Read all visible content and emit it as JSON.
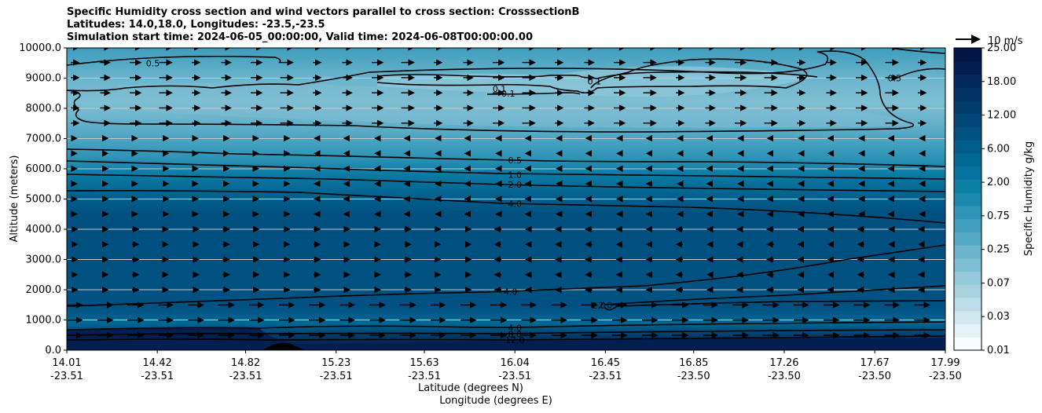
{
  "chart_data": {
    "type": "contourf",
    "title_lines": [
      "Specific Humidity cross section and wind vectors parallel to cross section: CrosssectionB",
      "Latitudes: 14.0,18.0, Longitudes: -23.5,-23.5",
      "Simulation start time: 2024-06-05_00:00:00, Valid time: 2024-06-08T00:00:00.00"
    ],
    "ylabel": "Altitude (meters)",
    "xlabel_lat": "Latitude (degrees N)",
    "xlabel_lon": "Longitude (degrees E)",
    "ylim": [
      0,
      10000
    ],
    "yticks": [
      "0.0",
      "1000.0",
      "2000.0",
      "3000.0",
      "4000.0",
      "5000.0",
      "6000.0",
      "7000.0",
      "8000.0",
      "9000.0",
      "10000.0"
    ],
    "xtick_lat": [
      "14.01",
      "14.42",
      "14.82",
      "15.23",
      "15.63",
      "16.04",
      "16.45",
      "16.85",
      "17.26",
      "17.67",
      "17.99"
    ],
    "xtick_lon": [
      "-23.51",
      "-23.51",
      "-23.51",
      "-23.51",
      "-23.51",
      "-23.51",
      "-23.51",
      "-23.50",
      "-23.50",
      "-23.50",
      "-23.50"
    ],
    "colorbar": {
      "label": "Specific Humidity g/kg",
      "ticks": [
        "0.01",
        "0.03",
        "0.07",
        "0.25",
        "0.75",
        "2.00",
        "6.00",
        "12.00",
        "18.00",
        "25.00"
      ],
      "colors": [
        "#f7fbfc",
        "#e4f1f5",
        "#d0e7ee",
        "#bcdde8",
        "#a7d3e1",
        "#93c9da",
        "#7fbfd3",
        "#6bb4cc",
        "#57aac5",
        "#439fbe",
        "#2f94b6",
        "#1b89ad",
        "#0d7fa5",
        "#05739d",
        "#026894",
        "#015d8b",
        "#015282",
        "#014778",
        "#023d6e",
        "#023364",
        "#03295a",
        "#031f51",
        "#041646"
      ]
    },
    "quiver_key": "10 m/s",
    "contour_labels": [
      {
        "text": "0.5",
        "x": 14.4,
        "y": 9500
      },
      {
        "text": "0.1",
        "x": 15.97,
        "y": 8650
      },
      {
        "text": "0.1",
        "x": 16.01,
        "y": 8500
      },
      {
        "text": "0.1",
        "x": 16.4,
        "y": 8900
      },
      {
        "text": "0.5",
        "x": 17.76,
        "y": 9000
      },
      {
        "text": "0.5",
        "x": 16.04,
        "y": 6280
      },
      {
        "text": "1.0",
        "x": 16.04,
        "y": 5800
      },
      {
        "text": "2.0",
        "x": 16.04,
        "y": 5480
      },
      {
        "text": "4.0",
        "x": 16.04,
        "y": 4850
      },
      {
        "text": "4.0",
        "x": 16.02,
        "y": 1930
      },
      {
        "text": "2.0",
        "x": 16.42,
        "y": 1480
      },
      {
        "text": "2.0",
        "x": 16.45,
        "y": 1500
      },
      {
        "text": "4.0",
        "x": 16.04,
        "y": 740
      },
      {
        "text": "8.0",
        "x": 16.04,
        "y": 530
      },
      {
        "text": "12.0",
        "x": 16.04,
        "y": 340
      }
    ]
  }
}
